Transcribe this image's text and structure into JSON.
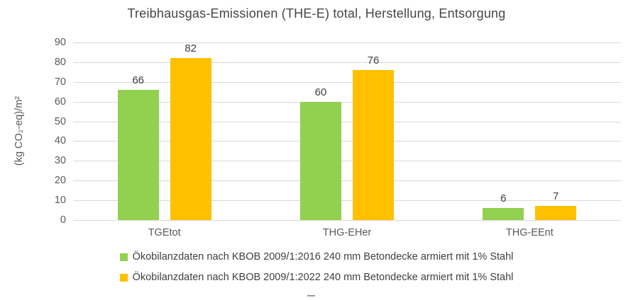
{
  "chart_data": {
    "type": "bar",
    "title": "Treibhausgas-Emissionen (THE-E) total, Herstellung, Entsorgung",
    "xlabel": "",
    "ylabel": "(kg CO₂-eq)/m²",
    "ylim": [
      0,
      90
    ],
    "ytick_step": 10,
    "grid": true,
    "legend_position": "bottom",
    "data_labels": true,
    "categories": [
      "TGEtot",
      "THG-EHer",
      "THG-EEnt"
    ],
    "series": [
      {
        "name": "Ökobilanzdaten nach KBOB 2009/1:2016 240 mm Betondecke armiert mit 1% Stahl",
        "color": "#92D050",
        "values": [
          66,
          60,
          6
        ]
      },
      {
        "name": "Ökobilanzdaten nach KBOB 2009/1:2022 240 mm Betondecke armiert mit 1% Stahl",
        "color": "#FFC000",
        "values": [
          82,
          76,
          7
        ]
      }
    ]
  },
  "colors": {
    "background": "#FFFFFF",
    "gridline": "#D9D9D9",
    "axis_text": "#595959",
    "title_text": "#464646",
    "data_label_text": "#404040"
  }
}
